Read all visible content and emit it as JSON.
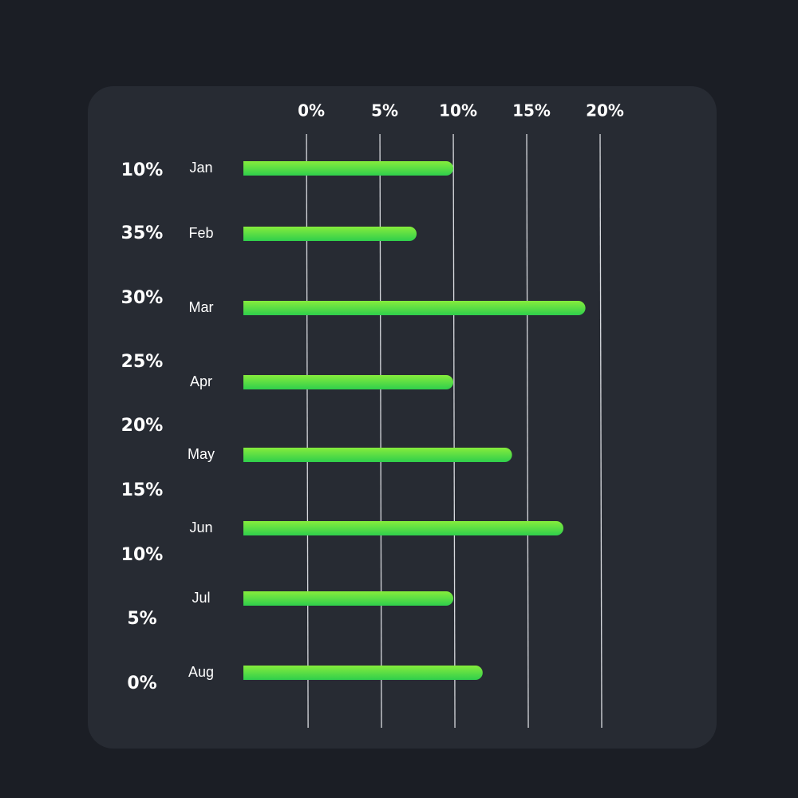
{
  "chart_data": {
    "type": "bar",
    "orientation": "horizontal",
    "categories": [
      "Jan",
      "Feb",
      "Mar",
      "Apr",
      "May",
      "Jun",
      "Jul",
      "Aug"
    ],
    "values": [
      10,
      7.5,
      19,
      10,
      14,
      17.5,
      10,
      12
    ],
    "colors": [
      "#86ec3c",
      "#2fcf4c"
    ],
    "xlim": [
      -4.3,
      22.5
    ],
    "xticks": [
      {
        "value": 0,
        "label": "0%"
      },
      {
        "value": 5,
        "label": "5%"
      },
      {
        "value": 10,
        "label": "10%"
      },
      {
        "value": 15,
        "label": "15%"
      },
      {
        "value": 20,
        "label": "20%"
      }
    ],
    "grid": true,
    "side_labels": [
      "10%",
      "35%",
      "30%",
      "25%",
      "20%",
      "15%",
      "10%",
      "5%",
      "0%"
    ]
  }
}
